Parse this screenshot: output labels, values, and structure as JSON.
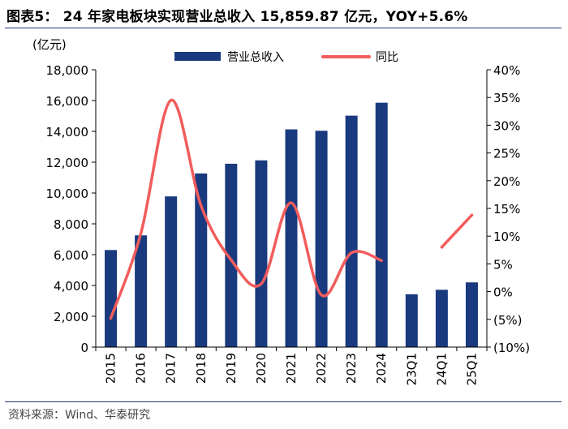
{
  "header": {
    "title": "图表5： 24 年家电板块实现营业总收入 15,859.87 亿元，YOY+5.6%"
  },
  "footer": {
    "source": "资料来源：Wind、华泰研究"
  },
  "chart_data": {
    "type": "bar",
    "title": "24 年家电板块实现营业总收入 15,859.87 亿元，YOY+5.6%",
    "ylabel": "(亿元)",
    "categories": [
      "2015",
      "2016",
      "2017",
      "2018",
      "2019",
      "2020",
      "2021",
      "2022",
      "2023",
      "2024",
      "23Q1",
      "24Q1",
      "25Q1"
    ],
    "series": [
      {
        "name": "营业总收入",
        "type": "bar",
        "axis": "left",
        "color": "#1a3a7f",
        "values": [
          6300,
          7250,
          9780,
          11270,
          11900,
          12120,
          14130,
          14040,
          15020,
          15860,
          3430,
          3720,
          4200
        ]
      },
      {
        "name": "同比",
        "type": "line",
        "axis": "right",
        "color": "#f25c5c",
        "unit": "%",
        "values": [
          -4.8,
          10.5,
          34.5,
          15.5,
          5.7,
          1.4,
          16.0,
          -0.6,
          7.0,
          5.6,
          null,
          8.0,
          13.8
        ],
        "segments": [
          [
            0,
            9
          ],
          [
            11,
            12
          ]
        ]
      }
    ],
    "y_left": {
      "range": [
        0,
        18000
      ],
      "ticks": [
        0,
        2000,
        4000,
        6000,
        8000,
        10000,
        12000,
        14000,
        16000,
        18000
      ],
      "tick_labels": [
        "0",
        "2,000",
        "4,000",
        "6,000",
        "8,000",
        "10,000",
        "12,000",
        "14,000",
        "16,000",
        "18,000"
      ]
    },
    "y_right": {
      "range": [
        -10,
        40
      ],
      "ticks": [
        -10,
        -5,
        0,
        5,
        10,
        15,
        20,
        25,
        30,
        35,
        40
      ],
      "tick_labels": [
        "(10%)",
        "(5%)",
        "0%",
        "5%",
        "10%",
        "15%",
        "20%",
        "25%",
        "30%",
        "35%",
        "40%"
      ]
    },
    "legend": {
      "position": "top-center",
      "items": [
        "营业总收入",
        "同比"
      ]
    },
    "grid": false
  }
}
